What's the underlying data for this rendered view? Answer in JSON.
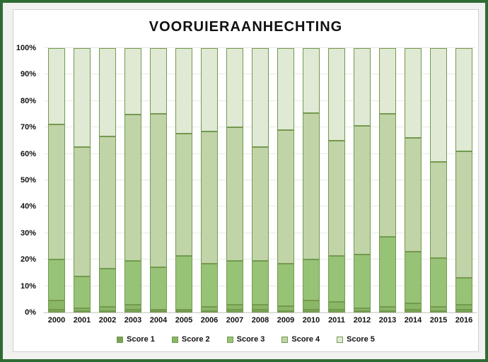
{
  "window": {
    "frame_border_color": "#2e6b34",
    "margin_background": "#f1f1ef",
    "panel_background": "#ffffff",
    "panel_border_color": "#cfcfcb"
  },
  "chart_data": {
    "type": "bar",
    "stacked": true,
    "normalized_100_percent": true,
    "title": "VOORUIERAANHECHTING",
    "xlabel": "",
    "ylabel": "",
    "ylim": [
      0,
      100
    ],
    "grid": true,
    "gridline_color": "#e8e8e4",
    "segment_border_color": "#74994f",
    "legend_position": "bottom",
    "y_ticks": [
      "0%",
      "10%",
      "20%",
      "30%",
      "40%",
      "50%",
      "60%",
      "70%",
      "80%",
      "90%",
      "100%"
    ],
    "categories": [
      "2000",
      "2001",
      "2002",
      "2003",
      "2004",
      "2005",
      "2006",
      "2007",
      "2008",
      "2009",
      "2010",
      "2011",
      "2012",
      "2013",
      "2014",
      "2015",
      "2016"
    ],
    "series": [
      {
        "name": "Score 1",
        "color": "#79a454",
        "values": [
          1,
          0.5,
          0.5,
          1,
          0.5,
          0.2,
          0.5,
          1,
          1,
          0.5,
          1,
          1,
          0.5,
          0.5,
          1,
          0.5,
          1
        ]
      },
      {
        "name": "Score 2",
        "color": "#89b766",
        "values": [
          3.5,
          1,
          1.5,
          2,
          0.5,
          0.3,
          1.5,
          2,
          2,
          2,
          3.5,
          3,
          1,
          1.5,
          2.5,
          1.5,
          2
        ]
      },
      {
        "name": "Score 3",
        "color": "#97c377",
        "values": [
          15.5,
          12,
          14.5,
          16.5,
          16,
          20.5,
          16.5,
          16.5,
          16.5,
          16,
          15.5,
          17.5,
          20.5,
          26.5,
          19.5,
          18.5,
          10
        ]
      },
      {
        "name": "Score 4",
        "color": "#c0d4a8",
        "values": [
          51,
          49,
          50,
          55.5,
          58,
          46.5,
          50,
          50.5,
          43,
          50.5,
          55.5,
          43.5,
          48.5,
          46.5,
          43,
          36.5,
          48
        ]
      },
      {
        "name": "Score 5",
        "color": "#dfe9d4",
        "values": [
          29,
          37.5,
          33.5,
          25,
          25,
          32.5,
          31.5,
          30,
          37.5,
          31,
          24.5,
          35,
          29.5,
          25,
          34,
          43,
          39
        ]
      }
    ]
  }
}
